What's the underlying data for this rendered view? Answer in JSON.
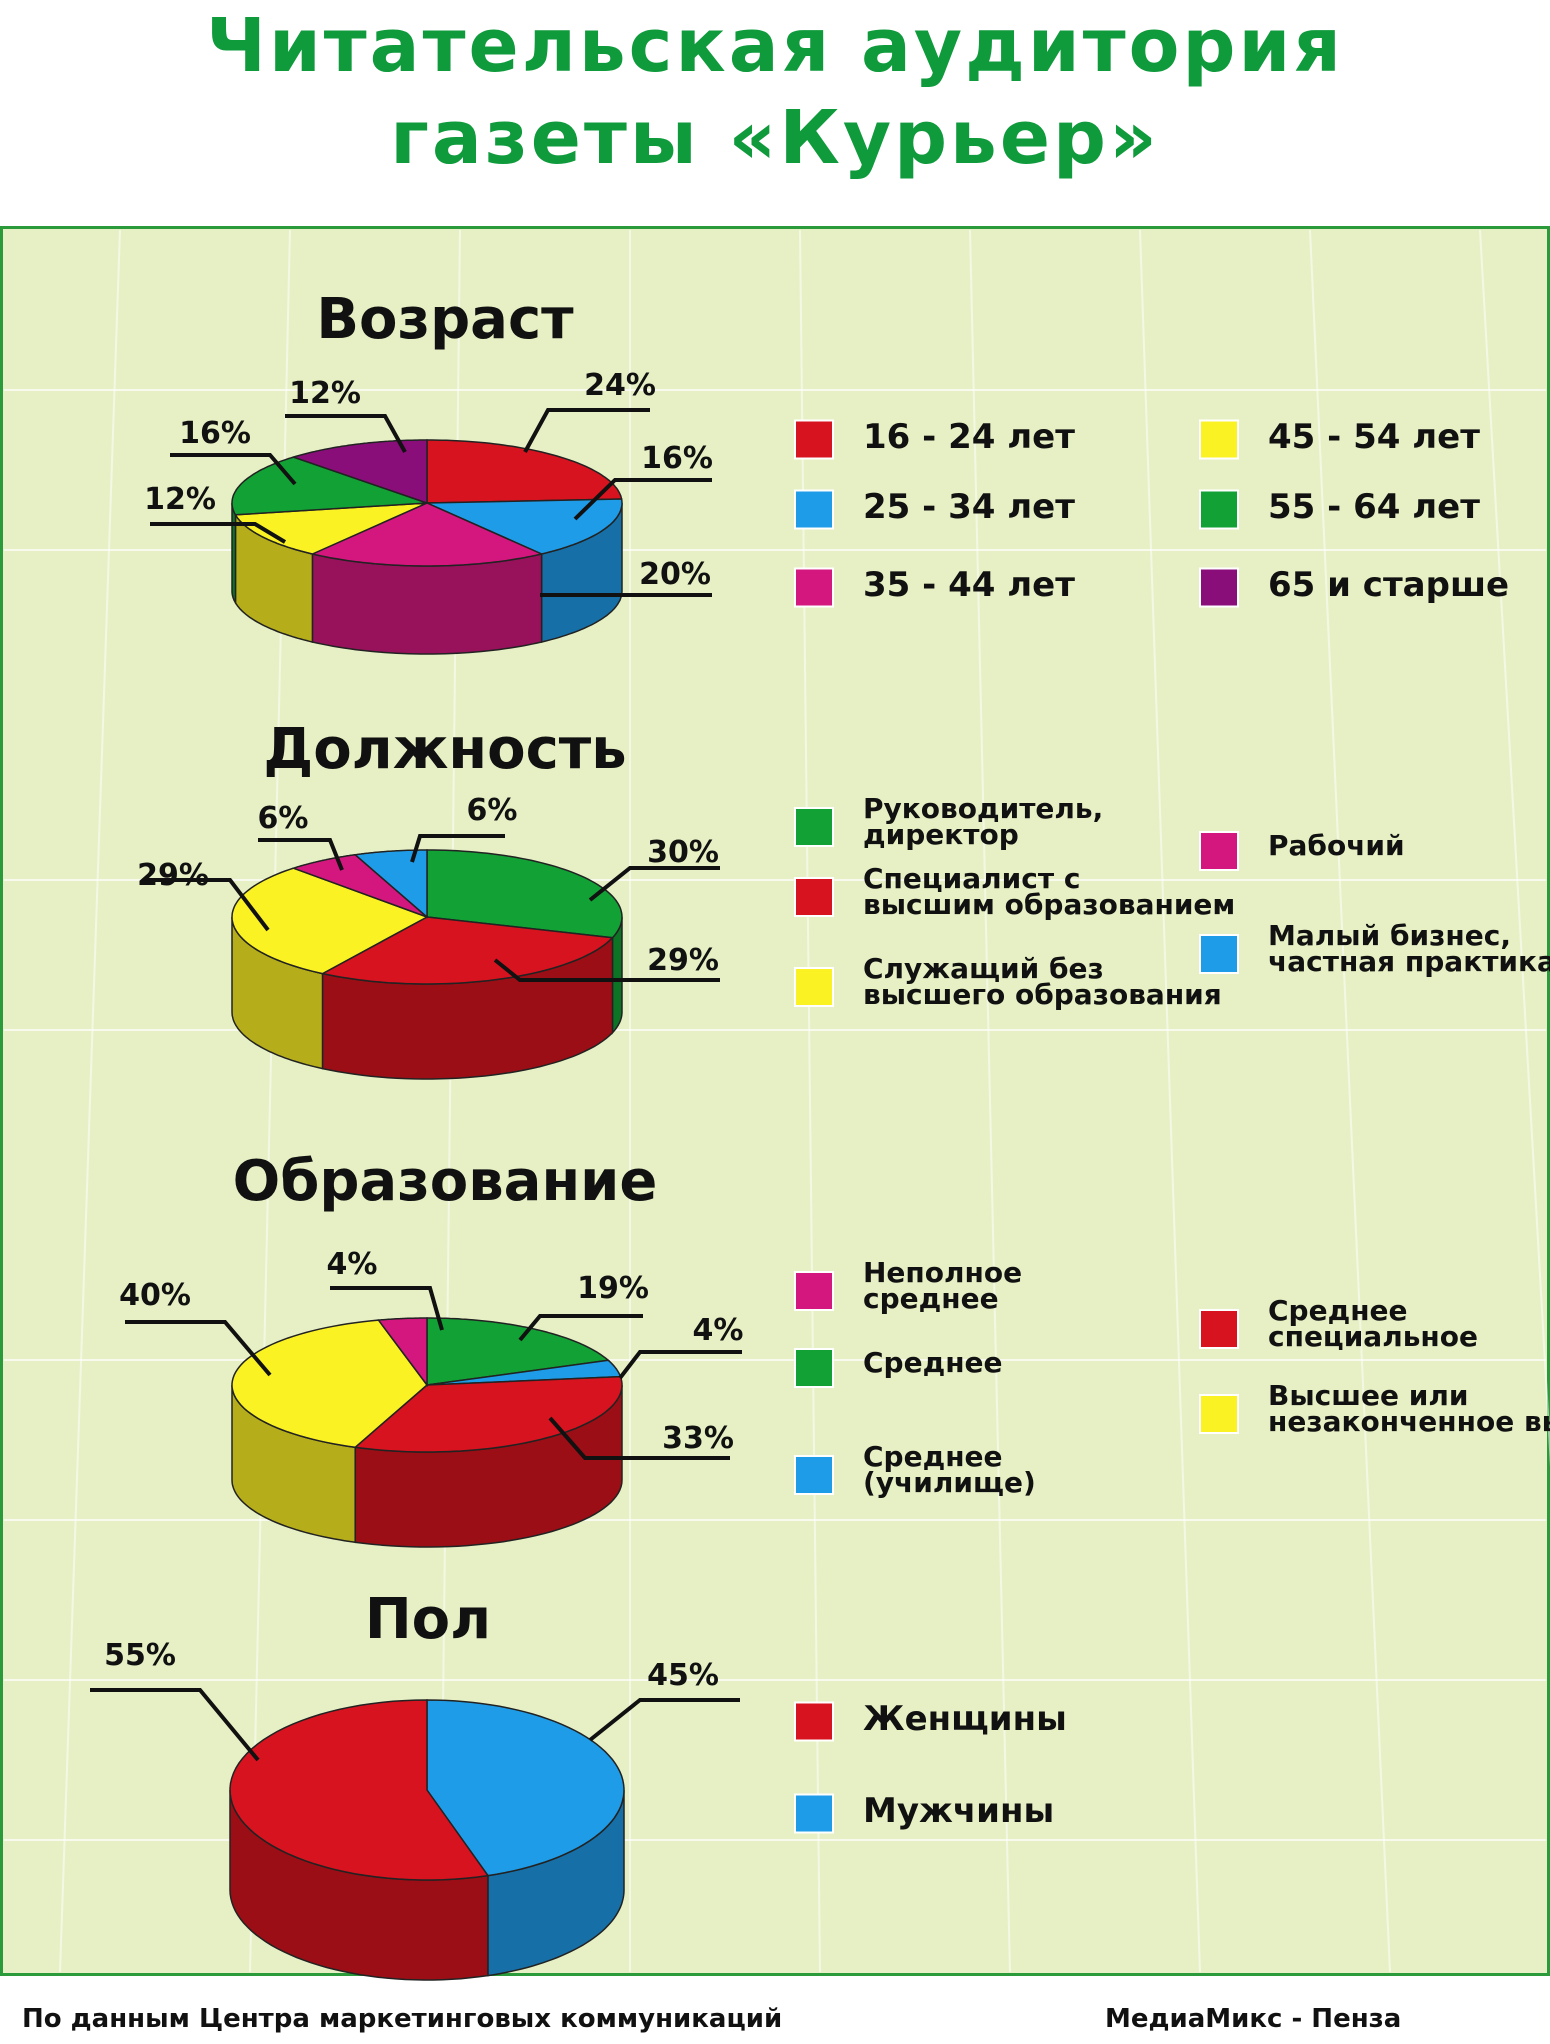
{
  "title": {
    "line1": "Читательская аудитория",
    "line2": "газеты «Курьер»"
  },
  "footer": {
    "source": "По данным Центра маркетинговых коммуникаций",
    "publisher": "МедиаМикс - Пенза"
  },
  "colors": {
    "red": "#d7131f",
    "blue": "#1e9ce8",
    "magenta": "#d3177e",
    "yellow": "#fbf224",
    "green": "#12a135",
    "purple": "#8a0e7a",
    "background": "#e6f0c4",
    "title_green": "#0f9a3c"
  },
  "chart_data": [
    {
      "type": "pie",
      "title": "Возраст",
      "slices": [
        {
          "label": "16 - 24 лет",
          "value": 24,
          "value_label": "24%",
          "color": "#d7131f"
        },
        {
          "label": "25 - 34 лет",
          "value": 16,
          "value_label": "16%",
          "color": "#1e9ce8"
        },
        {
          "label": "35 - 44 лет",
          "value": 20,
          "value_label": "20%",
          "color": "#d3177e"
        },
        {
          "label": "45 - 54 лет",
          "value": 12,
          "value_label": "12%",
          "color": "#fbf224"
        },
        {
          "label": "55 - 64 лет",
          "value": 16,
          "value_label": "16%",
          "color": "#12a135"
        },
        {
          "label": "65 и старше",
          "value": 12,
          "value_label": "12%",
          "color": "#8a0e7a"
        }
      ]
    },
    {
      "type": "pie",
      "title": "Должность",
      "slices": [
        {
          "label": "Руководитель, директор",
          "value": 30,
          "value_label": "30%",
          "color": "#12a135"
        },
        {
          "label": "Специалист с высшим образованием",
          "value": 29,
          "value_label": "29%",
          "color": "#d7131f"
        },
        {
          "label": "Служащий без высшего образования",
          "value": 29,
          "value_label": "29%",
          "color": "#fbf224"
        },
        {
          "label": "Рабочий",
          "value": 6,
          "value_label": "6%",
          "color": "#d3177e"
        },
        {
          "label": "Малый бизнес, частная практика",
          "value": 6,
          "value_label": "6%",
          "color": "#1e9ce8"
        }
      ]
    },
    {
      "type": "pie",
      "title": "Образование",
      "slices": [
        {
          "label": "Среднее",
          "value": 19,
          "value_label": "19%",
          "color": "#12a135"
        },
        {
          "label": "Среднее (училище)",
          "value": 4,
          "value_label": "4%",
          "color": "#1e9ce8"
        },
        {
          "label": "Среднее специальное",
          "value": 33,
          "value_label": "33%",
          "color": "#d7131f"
        },
        {
          "label": "Высшее или незаконченное высшее",
          "value": 40,
          "value_label": "40%",
          "color": "#fbf224"
        },
        {
          "label": "Неполное среднее",
          "value": 4,
          "value_label": "4%",
          "color": "#d3177e"
        }
      ]
    },
    {
      "type": "pie",
      "title": "Пол",
      "slices": [
        {
          "label": "Мужчины",
          "value": 45,
          "value_label": "45%",
          "color": "#1e9ce8"
        },
        {
          "label": "Женщины",
          "value": 55,
          "value_label": "55%",
          "color": "#d7131f"
        }
      ]
    }
  ]
}
